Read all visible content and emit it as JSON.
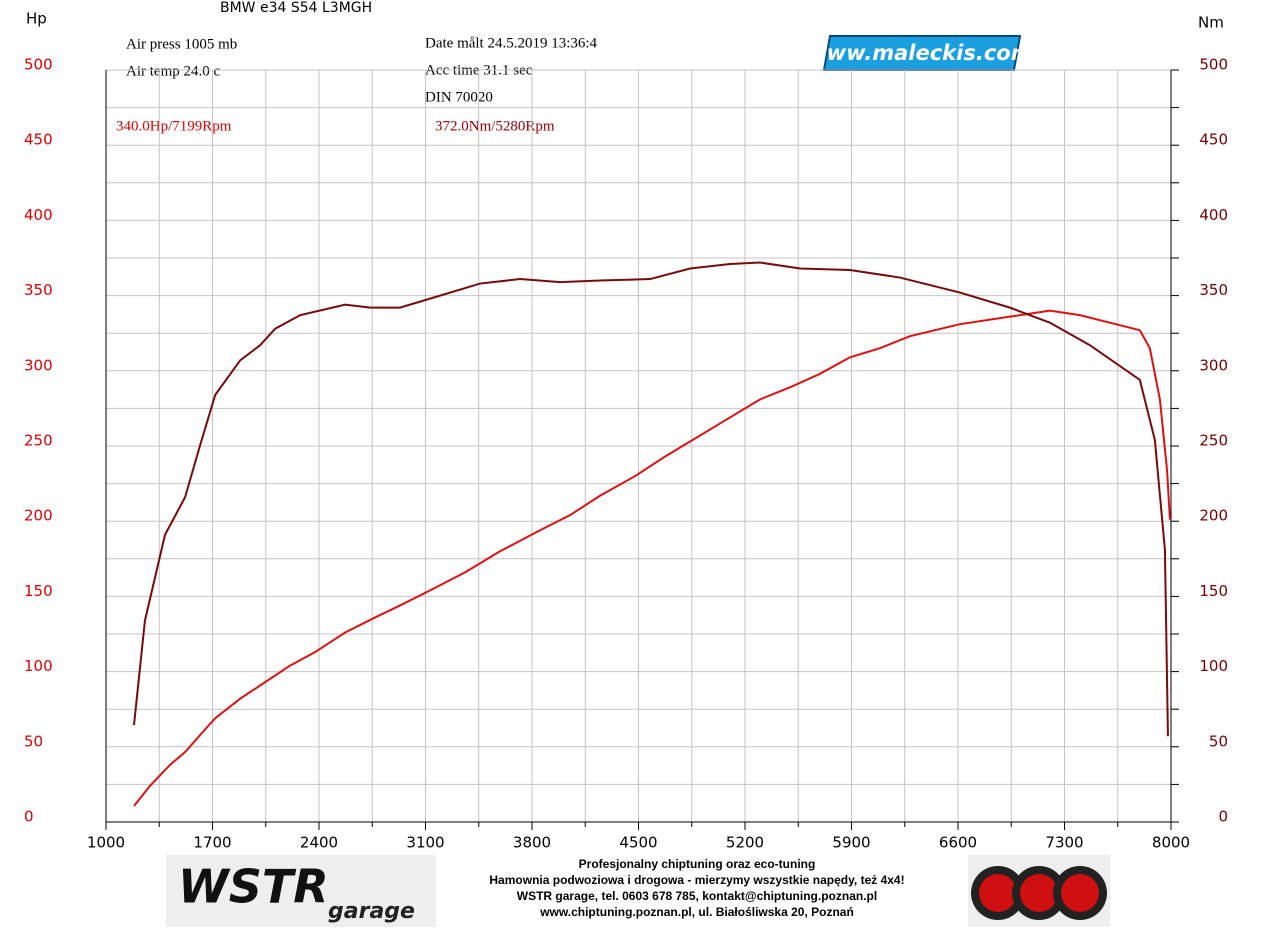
{
  "chart_data": {
    "type": "line",
    "title": "BMW e34 S54 L3MGH",
    "info_left": [
      "Air press  1005 mb",
      "Air temp  24.0 c"
    ],
    "info_mid": [
      "Date målt 24.5.2019 13:36:4",
      "Acc time  31.1 sec",
      "DIN 70020"
    ],
    "peak_labels": [
      "340.0Hp/7199Rpm",
      "372.0Nm/5280Rpm"
    ],
    "y_label": "Hp",
    "y2_label": "Nm",
    "site": "www.maleckis.com",
    "xlim": [
      1000,
      8000
    ],
    "xticks": [
      1000,
      1700,
      2400,
      3100,
      3800,
      4500,
      5200,
      5900,
      6600,
      7300,
      8000
    ],
    "xminorticks": [
      1350,
      2050,
      2750,
      3450,
      4150,
      4850,
      5550,
      6250,
      6950,
      7650
    ],
    "ylim": [
      0,
      500
    ],
    "yticks": [
      0,
      50,
      100,
      150,
      200,
      250,
      300,
      350,
      400,
      450,
      500
    ],
    "yminorticks": [
      25,
      75,
      125,
      175,
      225,
      275,
      325,
      375,
      425,
      475
    ],
    "y2lim": [
      0,
      500
    ],
    "y2ticks": [
      0,
      50,
      100,
      150,
      200,
      250,
      300,
      350,
      400,
      450,
      500
    ],
    "y_color": "#e00000",
    "y2_color": "#7a0000",
    "grid": true,
    "series": [
      {
        "color": "#e01010",
        "x": [
          1184,
          1289,
          1421,
          1520,
          1620,
          1718,
          1882,
          2046,
          2210,
          2375,
          2572,
          2769,
          2933,
          3130,
          3360,
          3590,
          3853,
          4050,
          4248,
          4478,
          4675,
          4839,
          5036,
          5299,
          5496,
          5693,
          5890,
          6087,
          6284,
          6613,
          6941,
          7204,
          7401,
          7598,
          7795,
          7861,
          7927,
          7974,
          7993
        ],
        "values": [
          10.6,
          24,
          38,
          46.5,
          58,
          69,
          82,
          93,
          104,
          113,
          126,
          136,
          144,
          154,
          166,
          180,
          194,
          204,
          217,
          230,
          243,
          253,
          265,
          281,
          289,
          298,
          309,
          315,
          323,
          331,
          336,
          340,
          337,
          332,
          327,
          315,
          281,
          234,
          201
        ]
      },
      {
        "color": "#7a0a0a",
        "axis": "y2",
        "x": [
          1184,
          1256,
          1388,
          1520,
          1620,
          1718,
          1882,
          2013,
          2112,
          2276,
          2572,
          2737,
          2933,
          3130,
          3459,
          3722,
          3985,
          4248,
          4577,
          4839,
          5102,
          5299,
          5562,
          5890,
          6218,
          6613,
          6941,
          7204,
          7467,
          7795,
          7894,
          7960,
          7980
        ],
        "values": [
          64.5,
          134,
          191,
          216,
          251,
          284,
          307,
          317,
          328,
          337,
          344,
          342,
          342,
          348,
          358,
          361,
          359,
          360,
          361,
          368,
          371,
          372,
          368,
          367,
          362,
          352,
          342,
          332,
          317,
          294,
          254,
          181,
          57
        ]
      }
    ]
  },
  "footer": {
    "logo": "WSTR",
    "logo_sub": "garage",
    "lines": [
      "Profesjonalny chiptuning oraz eco-tuning",
      "Hamownia podwoziowa i drogowa - mierzymy wszystkie napędy, też 4x4!",
      "WSTR garage, tel. 0603 678 785, kontakt@chiptuning.poznan.pl",
      "www.chiptuning.poznan.pl, ul. Białośliwska 20, Poznań"
    ]
  }
}
